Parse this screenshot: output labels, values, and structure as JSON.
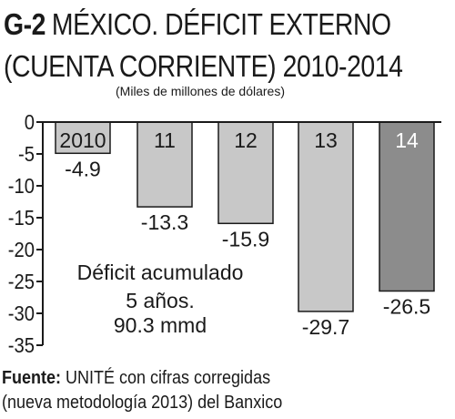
{
  "header": {
    "figure_id": "G-2",
    "title_line1": "MÉXICO. DÉFICIT EXTERNO",
    "title_line2": "(CUENTA CORRIENTE) 2010-2014",
    "units": "(Miles de millones de dólares)"
  },
  "annotation": [
    "Déficit acumulado",
    "5 años.",
    "90.3 mmd"
  ],
  "footer": {
    "source_label": "Fuente:",
    "source_line1": "UNITÉ con cifras corregidas",
    "source_line2": "(nueva metodología 2013) del Banxico"
  },
  "chart_data": {
    "type": "bar",
    "categories": [
      "2010",
      "11",
      "12",
      "13",
      "14"
    ],
    "values": [
      -4.9,
      -13.3,
      -15.9,
      -29.7,
      -26.5
    ],
    "value_labels": [
      "-4.9",
      "-13.3",
      "-15.9",
      "-29.7",
      "-26.5"
    ],
    "ylim": [
      -35,
      0
    ],
    "yticks": [
      0,
      -5,
      -10,
      -15,
      -20,
      -25,
      -30,
      -35
    ],
    "ytick_labels": [
      "0",
      "-5",
      "-10",
      "-15",
      "-20",
      "-25",
      "-30",
      "-35"
    ],
    "grid": false,
    "colors": {
      "bar": "#c8c8c8",
      "bar_highlight": "#8c8c8c",
      "outline": "#1a1a1a",
      "highlight_label": "#ffffff"
    },
    "highlight_index": 4
  }
}
